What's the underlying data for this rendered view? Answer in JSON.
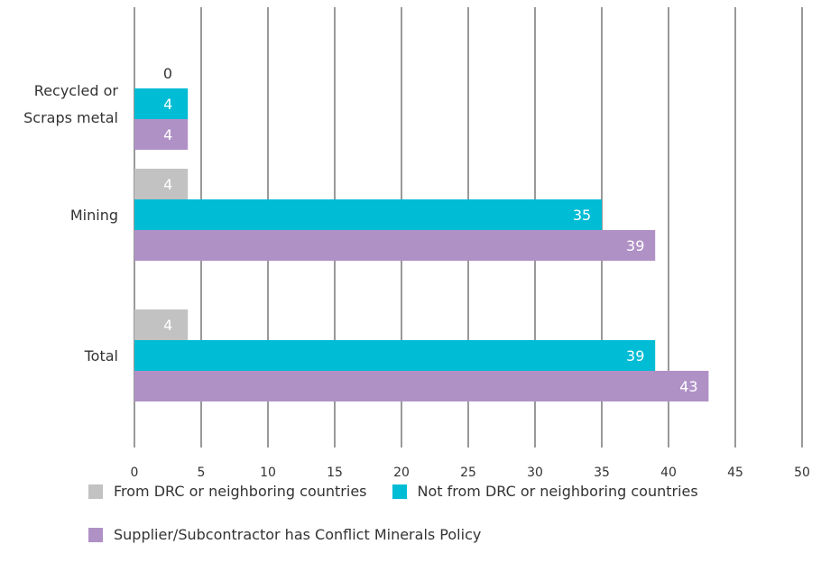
{
  "chart_data": {
    "type": "bar",
    "orientation": "horizontal",
    "categories": [
      "Recycled or Scraps metal",
      "Mining",
      "Total"
    ],
    "category_label_lines": [
      [
        "Recycled or",
        "Scraps metal"
      ],
      [
        "Mining"
      ],
      [
        "Total"
      ]
    ],
    "series": [
      {
        "name": "From DRC or neighboring countries",
        "values": [
          0,
          4,
          4
        ],
        "color": "#c2c2c2"
      },
      {
        "name": "Not from DRC or neighboring countries",
        "values": [
          4,
          35,
          39
        ],
        "color": "#00bcd4"
      },
      {
        "name": "Supplier/Subcontractor has Conflict Minerals Policy",
        "values": [
          4,
          39,
          43
        ],
        "color": "#b091c6"
      }
    ],
    "xlim": [
      0,
      50
    ],
    "xticks": [
      0,
      5,
      10,
      15,
      20,
      25,
      30,
      35,
      40,
      45,
      50
    ],
    "grid": "vertical",
    "legend_position": "bottom",
    "title": "",
    "xlabel": "",
    "ylabel": ""
  }
}
